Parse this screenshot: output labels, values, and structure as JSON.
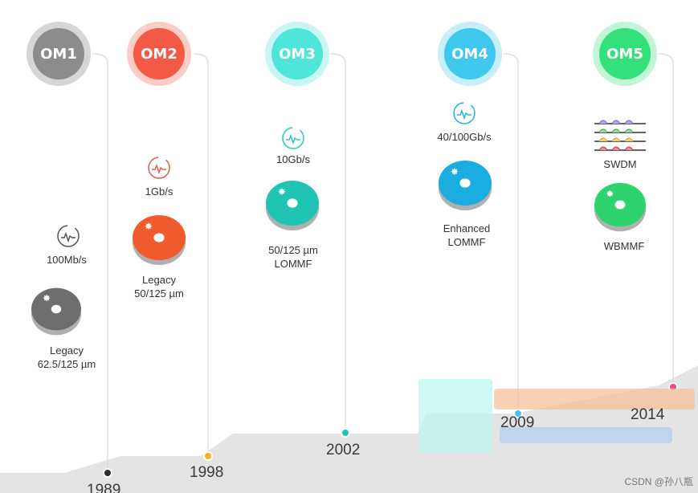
{
  "milestones": [
    {
      "badge": "OM1",
      "year": "1989",
      "speed": "100Mb/s",
      "type_line1": "Legacy",
      "type_line2": "62.5/125 µm",
      "color": "#8c8c8c",
      "ring": "#d6d6d6",
      "spool": "#6e6e6e",
      "dot": "#2e2e2e"
    },
    {
      "badge": "OM2",
      "year": "1998",
      "speed": "1Gb/s",
      "type_line1": "Legacy",
      "type_line2": "50/125 µm",
      "color": "#f35a45",
      "ring": "#fbcdc6",
      "spool": "#f05a2c",
      "dot": "#f4b41a"
    },
    {
      "badge": "OM3",
      "year": "2002",
      "speed": "10Gb/s",
      "type_line1": "50/125 µm",
      "type_line2": "LOMMF",
      "color": "#4ee6d8",
      "ring": "#c9f6f2",
      "spool": "#1fc4b4",
      "dot": "#19c4c4"
    },
    {
      "badge": "OM4",
      "year": "2009",
      "speed": "40/100Gb/s",
      "type_line1": "Enhanced",
      "type_line2": "LOMMF",
      "color": "#3fc8ee",
      "ring": "#c6eefb",
      "spool": "#1aaee0",
      "dot": "#3fc8ee"
    },
    {
      "badge": "OM5",
      "year": "2014",
      "speed": "SWDM",
      "type_line1": "WBMMF",
      "type_line2": "",
      "color": "#33e07a",
      "ring": "#c2f5d6",
      "spool": "#2fd36e",
      "dot": "#e0508a"
    }
  ],
  "watermark": "CSDN @孙八瓶",
  "colors": {
    "timeline": "#dcdcdc",
    "ground": "#e6e6e6",
    "text": "#333333"
  }
}
